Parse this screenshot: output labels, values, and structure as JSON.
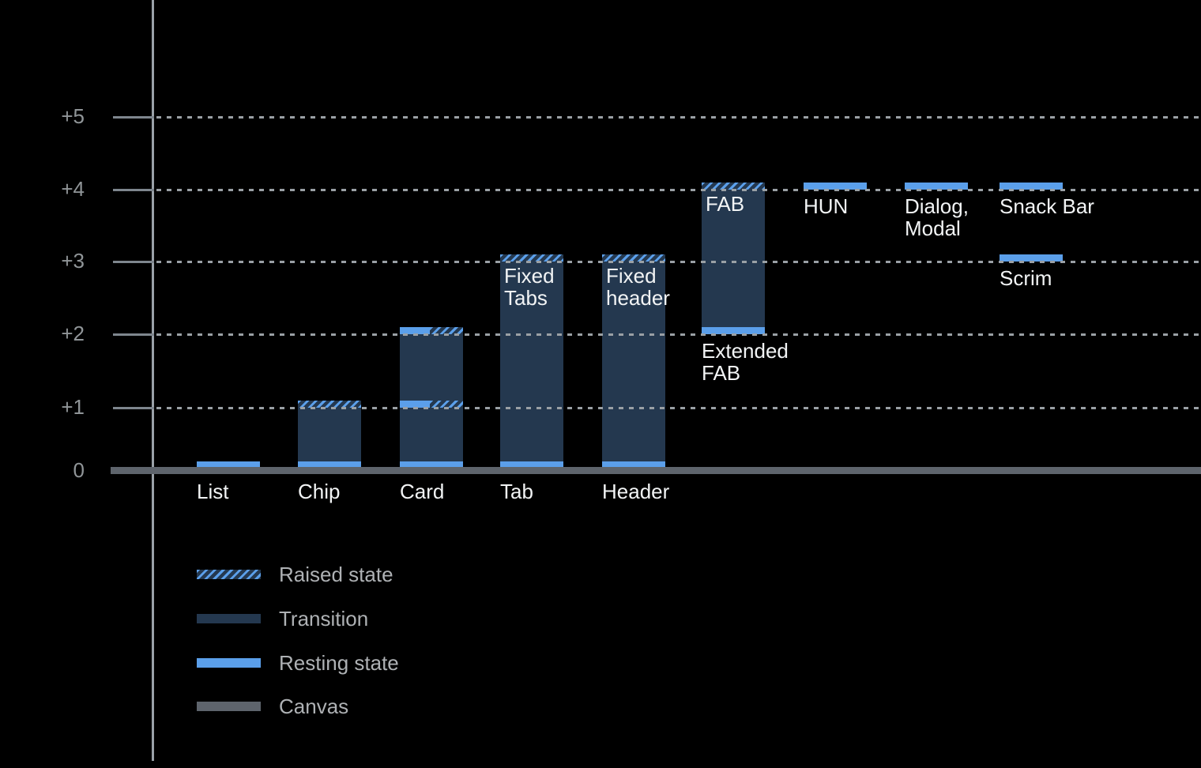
{
  "chart_data": {
    "type": "bar",
    "title": "",
    "xlabel": "",
    "ylabel": "",
    "ylim": [
      0,
      5.5
    ],
    "ytick_labels": [
      "+5",
      "+4",
      "+3",
      "+2",
      "+1",
      "0"
    ],
    "ytick_values": [
      5,
      4,
      3,
      2,
      1,
      0
    ],
    "grid": "horizontal-dotted",
    "legend_position": "bottom-left",
    "legend": [
      {
        "kind": "raised",
        "label": "Raised state"
      },
      {
        "kind": "transition",
        "label": "Transition"
      },
      {
        "kind": "resting",
        "label": "Resting state"
      },
      {
        "kind": "canvas",
        "label": "Canvas"
      }
    ],
    "components": [
      {
        "id": "list",
        "label": "List",
        "col": 0,
        "label_pos": "baseline",
        "segments": [
          {
            "kind": "resting",
            "from": 0,
            "to": 0.1
          }
        ]
      },
      {
        "id": "chip",
        "label": "Chip",
        "col": 1,
        "label_pos": "baseline",
        "segments": [
          {
            "kind": "resting",
            "from": 0,
            "to": 0.1
          },
          {
            "kind": "transition",
            "from": 0.1,
            "to": 1.0
          },
          {
            "kind": "raised",
            "from": 1.0,
            "to": 1.1
          }
        ]
      },
      {
        "id": "card",
        "label": "Card",
        "col": 2,
        "label_pos": "baseline",
        "segments": [
          {
            "kind": "resting",
            "from": 0,
            "to": 0.1
          },
          {
            "kind": "transition",
            "from": 0.1,
            "to": 1.0
          },
          {
            "kind": "resting-raised",
            "from": 1.0,
            "to": 1.1
          },
          {
            "kind": "transition",
            "from": 1.1,
            "to": 2.0
          },
          {
            "kind": "resting-raised",
            "from": 2.0,
            "to": 2.1
          }
        ]
      },
      {
        "id": "tab",
        "label": "Tab",
        "col": 3,
        "label_pos": "baseline",
        "inner_label": "Fixed\nTabs",
        "inner_label_level": 3,
        "segments": [
          {
            "kind": "resting",
            "from": 0,
            "to": 0.1
          },
          {
            "kind": "transition",
            "from": 0.1,
            "to": 3.0
          },
          {
            "kind": "raised",
            "from": 3.0,
            "to": 3.1
          }
        ]
      },
      {
        "id": "header",
        "label": "Header",
        "col": 4,
        "label_pos": "baseline",
        "inner_label": "Fixed\nheader",
        "inner_label_level": 3,
        "segments": [
          {
            "kind": "resting",
            "from": 0,
            "to": 0.1
          },
          {
            "kind": "transition",
            "from": 0.1,
            "to": 3.0
          },
          {
            "kind": "raised",
            "from": 3.0,
            "to": 3.1
          }
        ]
      },
      {
        "id": "extended-fab",
        "label": "Extended\nFAB",
        "col": 5,
        "label_pos": "below-bar",
        "inner_label": "FAB",
        "inner_label_level": 4,
        "segments": [
          {
            "kind": "resting",
            "from": 2.0,
            "to": 2.1
          },
          {
            "kind": "transition",
            "from": 2.1,
            "to": 4.0
          },
          {
            "kind": "raised",
            "from": 4.0,
            "to": 4.1
          }
        ]
      },
      {
        "id": "hun",
        "label": "HUN",
        "col": 6,
        "label_pos": "below-bar",
        "segments": [
          {
            "kind": "resting",
            "from": 4.0,
            "to": 4.1
          }
        ]
      },
      {
        "id": "dialog-modal",
        "label": "Dialog,\nModal",
        "col": 7,
        "label_pos": "below-bar",
        "segments": [
          {
            "kind": "resting",
            "from": 4.0,
            "to": 4.1
          }
        ]
      },
      {
        "id": "snack-bar",
        "label": "Snack Bar",
        "col": 8,
        "label_pos": "below-bar",
        "segments": [
          {
            "kind": "resting",
            "from": 4.0,
            "to": 4.1
          }
        ]
      },
      {
        "id": "scrim",
        "label": "Scrim",
        "col": 8,
        "label_pos": "below-bar",
        "segments": [
          {
            "kind": "resting",
            "from": 3.0,
            "to": 3.1
          }
        ]
      }
    ],
    "colors": {
      "background": "#000000",
      "resting": "#5b9fea",
      "transition": "#24384f",
      "canvas": "#5e646c",
      "grid_dots": "#9aa0a5",
      "axis_line": "#9aa1a8",
      "tick": "#7e868e",
      "axis_label_text": "#909598",
      "bar_label_text": "#f2f4f5",
      "legend_label_text": "#aeb1b4"
    }
  }
}
